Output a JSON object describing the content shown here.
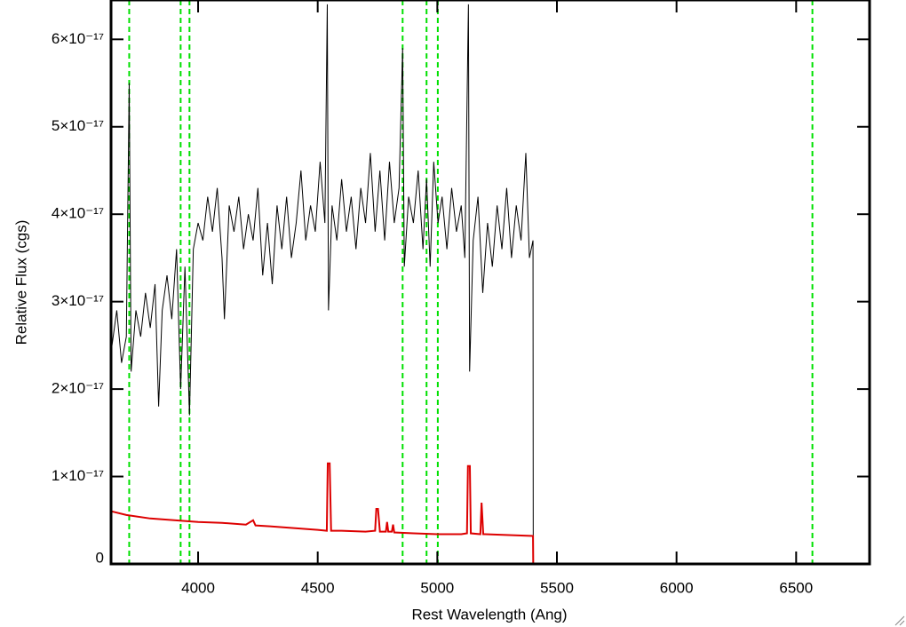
{
  "chart_data": {
    "type": "line",
    "xlabel": "Rest Wavelength (Ang)",
    "ylabel": "Relative Flux (cgs)",
    "xlim": [
      3636,
      6807
    ],
    "ylim": [
      0,
      6.45e-17
    ],
    "xticks": [
      4000,
      4500,
      5000,
      5500,
      6000,
      6500
    ],
    "yticks": [
      0,
      {
        "value": 1e-17,
        "label": "1×10⁻¹⁷"
      },
      {
        "value": 2e-17,
        "label": "2×10⁻¹⁷"
      },
      {
        "value": 3e-17,
        "label": "3×10⁻¹⁷"
      },
      {
        "value": 4e-17,
        "label": "4×10⁻¹⁷"
      },
      {
        "value": 5e-17,
        "label": "5×10⁻¹⁷"
      },
      {
        "value": 6e-17,
        "label": "6×10⁻¹⁷"
      }
    ],
    "vlines": {
      "color": "#00e000",
      "dashed": true,
      "x": [
        3712,
        3927,
        3964,
        4855,
        4955,
        5002,
        6568
      ]
    },
    "series": [
      {
        "color": "#000000",
        "x": [
          3640,
          3660,
          3680,
          3700,
          3712,
          3720,
          3740,
          3760,
          3780,
          3800,
          3820,
          3835,
          3850,
          3870,
          3890,
          3910,
          3927,
          3945,
          3964,
          3980,
          4000,
          4020,
          4040,
          4060,
          4080,
          4100,
          4110,
          4130,
          4150,
          4170,
          4190,
          4210,
          4230,
          4250,
          4270,
          4290,
          4310,
          4330,
          4350,
          4370,
          4390,
          4410,
          4430,
          4450,
          4470,
          4490,
          4510,
          4530,
          4540,
          4545,
          4560,
          4580,
          4600,
          4620,
          4640,
          4660,
          4680,
          4700,
          4720,
          4740,
          4760,
          4780,
          4800,
          4820,
          4840,
          4855,
          4862,
          4880,
          4900,
          4920,
          4940,
          4955,
          4970,
          4985,
          5003,
          5020,
          5040,
          5060,
          5080,
          5100,
          5115,
          5130,
          5135,
          5150,
          5170,
          5190,
          5210,
          5230,
          5250,
          5270,
          5290,
          5310,
          5330,
          5350,
          5370,
          5385,
          5400,
          5401,
          6807
        ],
        "values": [
          2.5e-17,
          2.9e-17,
          2.3e-17,
          2.6e-17,
          5.5e-17,
          2.2e-17,
          2.9e-17,
          2.6e-17,
          3.1e-17,
          2.7e-17,
          3.2e-17,
          1.8e-17,
          2.9e-17,
          3.3e-17,
          2.8e-17,
          3.6e-17,
          2e-17,
          3.4e-17,
          1.7e-17,
          3.6e-17,
          3.9e-17,
          3.7e-17,
          4.2e-17,
          3.8e-17,
          4.3e-17,
          3.5e-17,
          2.8e-17,
          4.1e-17,
          3.8e-17,
          4.2e-17,
          3.6e-17,
          4e-17,
          3.7e-17,
          4.3e-17,
          3.3e-17,
          3.9e-17,
          3.2e-17,
          4.1e-17,
          3.6e-17,
          4.2e-17,
          3.5e-17,
          3.9e-17,
          4.5e-17,
          3.7e-17,
          4.1e-17,
          3.8e-17,
          4.6e-17,
          3.9e-17,
          6.4e-17,
          2.9e-17,
          4.1e-17,
          3.7e-17,
          4.4e-17,
          3.8e-17,
          4.2e-17,
          3.6e-17,
          4.3e-17,
          3.9e-17,
          4.7e-17,
          3.8e-17,
          4.5e-17,
          3.7e-17,
          4.6e-17,
          3.9e-17,
          4.3e-17,
          5.9e-17,
          3.4e-17,
          4.2e-17,
          3.9e-17,
          4.5e-17,
          3.6e-17,
          4.4e-17,
          3.4e-17,
          4.6e-17,
          3.9e-17,
          4.2e-17,
          3.6e-17,
          4.3e-17,
          3.8e-17,
          4.1e-17,
          3.5e-17,
          6.4e-17,
          2.2e-17,
          3.7e-17,
          4.2e-17,
          3.1e-17,
          3.9e-17,
          3.4e-17,
          4.1e-17,
          3.6e-17,
          4.3e-17,
          3.5e-17,
          4.1e-17,
          3.7e-17,
          4.7e-17,
          3.5e-17,
          3.7e-17,
          0,
          0
        ]
      },
      {
        "color": "#dd0000",
        "x": [
          3640,
          3700,
          3800,
          3900,
          4000,
          4100,
          4200,
          4230,
          4240,
          4300,
          4400,
          4500,
          4538,
          4542,
          4550,
          4556,
          4600,
          4700,
          4740,
          4745,
          4752,
          4760,
          4785,
          4790,
          4795,
          4810,
          4815,
          4820,
          4900,
          5000,
          5100,
          5124,
          5128,
          5136,
          5140,
          5180,
          5185,
          5192,
          5200,
          5300,
          5400,
          5401,
          6807
        ],
        "values": [
          6e-18,
          5.6e-18,
          5.2e-18,
          5e-18,
          4.8e-18,
          4.7e-18,
          4.5e-18,
          5e-18,
          4.4e-18,
          4.3e-18,
          4.1e-18,
          3.9e-18,
          3.8e-18,
          1.15e-17,
          1.15e-17,
          3.8e-18,
          3.8e-18,
          3.7e-18,
          3.8e-18,
          6.3e-18,
          6.3e-18,
          3.7e-18,
          3.7e-18,
          4.8e-18,
          3.7e-18,
          3.7e-18,
          4.5e-18,
          3.6e-18,
          3.5e-18,
          3.4e-18,
          3.4e-18,
          3.5e-18,
          1.12e-17,
          1.12e-17,
          3.5e-18,
          3.4e-18,
          7e-18,
          3.4e-18,
          3.4e-18,
          3.3e-18,
          3.2e-18,
          0,
          0
        ]
      }
    ]
  }
}
